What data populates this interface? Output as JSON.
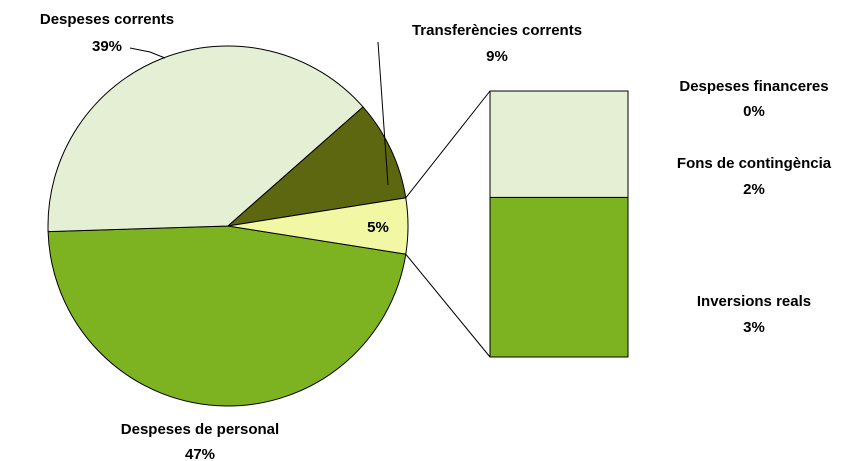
{
  "chart_data": {
    "type": "pie-of-bar",
    "pie": {
      "categories": [
        "Despeses de personal",
        "Despeses corrents",
        "Transferències corrents",
        null
      ],
      "values": [
        47,
        39,
        9,
        5
      ],
      "value_labels": [
        "47%",
        "39%",
        "9%",
        "5%"
      ],
      "colors": [
        "#7db320",
        "#e4efd4",
        "#5c6710",
        "#f1f7a2"
      ]
    },
    "bar": {
      "categories": [
        "Inversions reals",
        "Fons de contingència",
        "Despeses financeres"
      ],
      "values": [
        3,
        2,
        0
      ],
      "value_labels": [
        "3%",
        "2%",
        "0%"
      ],
      "colors": [
        "#7db320",
        "#e4efd4",
        "#000000"
      ]
    }
  }
}
